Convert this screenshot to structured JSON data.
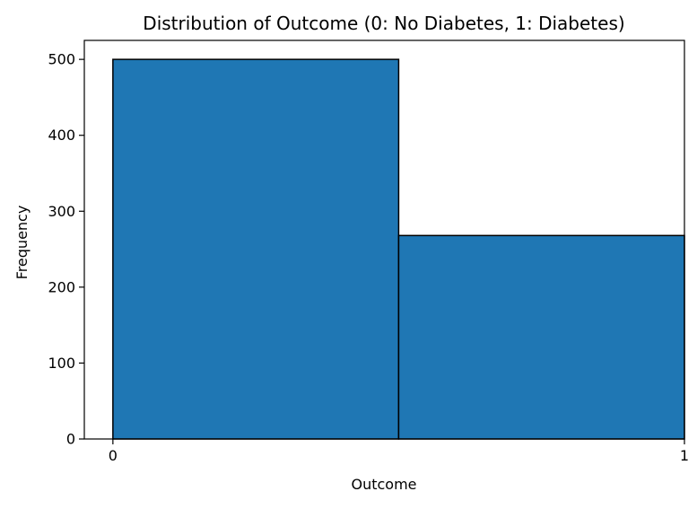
{
  "chart_data": {
    "type": "bar",
    "title": "Distribution of Outcome (0: No Diabetes, 1: Diabetes)",
    "xlabel": "Outcome",
    "ylabel": "Frequency",
    "bins": [
      {
        "start": 0,
        "end": 0.5,
        "value": 500
      },
      {
        "start": 0.5,
        "end": 1,
        "value": 268
      }
    ],
    "xlim": [
      -0.05,
      1.0
    ],
    "ylim": [
      0,
      525
    ],
    "x_ticks": [
      0,
      1
    ],
    "x_tick_labels": [
      "0",
      "1"
    ],
    "y_ticks": [
      0,
      100,
      200,
      300,
      400,
      500
    ],
    "y_tick_labels": [
      "0",
      "100",
      "200",
      "300",
      "400",
      "500"
    ],
    "grid": false,
    "legend": "none",
    "colors": {
      "bar_fill": "#1f77b4",
      "bar_edge": "#000000",
      "axis": "#000000"
    }
  }
}
